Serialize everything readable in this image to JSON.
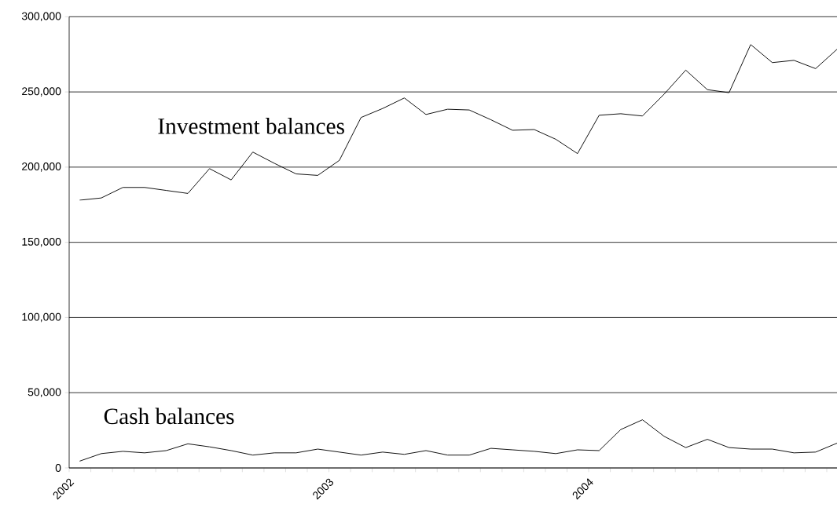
{
  "chart_data": {
    "type": "line",
    "x": [
      "2002-01-16",
      "2002-02-16",
      "2002-03-16",
      "2002-04-16",
      "2002-05-16",
      "2002-06-16",
      "2002-07-16",
      "2002-08-16",
      "2002-09-16",
      "2002-10-16",
      "2002-11-16",
      "2002-12-16",
      "2003-01-16",
      "2003-02-16",
      "2003-03-16",
      "2003-04-16",
      "2003-05-16",
      "2003-06-16",
      "2003-07-16",
      "2003-08-16",
      "2003-09-16",
      "2003-10-16",
      "2003-11-16",
      "2003-12-16",
      "2004-01-16",
      "2004-02-16",
      "2004-03-16",
      "2004-04-16",
      "2004-05-16",
      "2004-06-16",
      "2004-07-16",
      "2004-08-16",
      "2004-09-16",
      "2004-10-16",
      "2004-11-16",
      "2004-12-16"
    ],
    "series": [
      {
        "name": "Investment balances",
        "color": "#000000",
        "values": [
          178000,
          179500,
          186500,
          186500,
          184500,
          182500,
          199000,
          191500,
          210000,
          202500,
          195500,
          194500,
          204500,
          233000,
          239000,
          246000,
          235000,
          238500,
          238000,
          231500,
          224500,
          225000,
          218500,
          209000,
          234500,
          235500,
          234000,
          248500,
          264500,
          251500,
          249500,
          281500,
          269500,
          271000,
          265500,
          278500
        ]
      },
      {
        "name": "Cash balances",
        "color": "#000000",
        "values": [
          4500,
          9500,
          11000,
          10000,
          11500,
          16000,
          14000,
          11500,
          8500,
          10000,
          10000,
          12500,
          10500,
          8500,
          10500,
          9000,
          11500,
          8500,
          8500,
          13000,
          12000,
          11000,
          9500,
          12000,
          11500,
          25500,
          32000,
          21000,
          13500,
          19000,
          13500,
          12500,
          12500,
          10000,
          10500,
          16500
        ]
      }
    ],
    "xlim": [
      "2002-01",
      "2004-12-16"
    ],
    "xticks": [
      {
        "value": "2002-01",
        "label": "2002"
      },
      {
        "value": "2002-02",
        "label": null
      },
      {
        "value": "2002-03",
        "label": null
      },
      {
        "value": "2002-04",
        "label": null
      },
      {
        "value": "2002-05",
        "label": null
      },
      {
        "value": "2002-06",
        "label": null
      },
      {
        "value": "2002-07",
        "label": null
      },
      {
        "value": "2002-08",
        "label": null
      },
      {
        "value": "2002-09",
        "label": null
      },
      {
        "value": "2002-10",
        "label": null
      },
      {
        "value": "2002-11",
        "label": null
      },
      {
        "value": "2002-12",
        "label": null
      },
      {
        "value": "2003-01",
        "label": "2003"
      },
      {
        "value": "2003-02",
        "label": null
      },
      {
        "value": "2003-03",
        "label": null
      },
      {
        "value": "2003-04",
        "label": null
      },
      {
        "value": "2003-05",
        "label": null
      },
      {
        "value": "2003-06",
        "label": null
      },
      {
        "value": "2003-07",
        "label": null
      },
      {
        "value": "2003-08",
        "label": null
      },
      {
        "value": "2003-09",
        "label": null
      },
      {
        "value": "2003-10",
        "label": null
      },
      {
        "value": "2003-11",
        "label": null
      },
      {
        "value": "2003-12",
        "label": null
      },
      {
        "value": "2004-01",
        "label": "2004"
      },
      {
        "value": "2004-02",
        "label": null
      },
      {
        "value": "2004-03",
        "label": null
      },
      {
        "value": "2004-04",
        "label": null
      },
      {
        "value": "2004-05",
        "label": null
      },
      {
        "value": "2004-06",
        "label": null
      },
      {
        "value": "2004-07",
        "label": null
      },
      {
        "value": "2004-08",
        "label": null
      },
      {
        "value": "2004-09",
        "label": null
      },
      {
        "value": "2004-10",
        "label": null
      },
      {
        "value": "2004-11",
        "label": null
      },
      {
        "value": "2004-12",
        "label": null
      }
    ],
    "ylim": [
      0,
      300000
    ],
    "yticks": [
      0,
      {
        "value": 50000,
        "label": "50,000"
      },
      {
        "value": 100000,
        "label": "100,000"
      },
      {
        "value": 150000,
        "label": "150,000"
      },
      {
        "value": 200000,
        "label": "200,000"
      },
      {
        "value": 250000,
        "label": "250,000"
      },
      {
        "value": 300000,
        "label": "300,000"
      }
    ],
    "grid": "y"
  }
}
